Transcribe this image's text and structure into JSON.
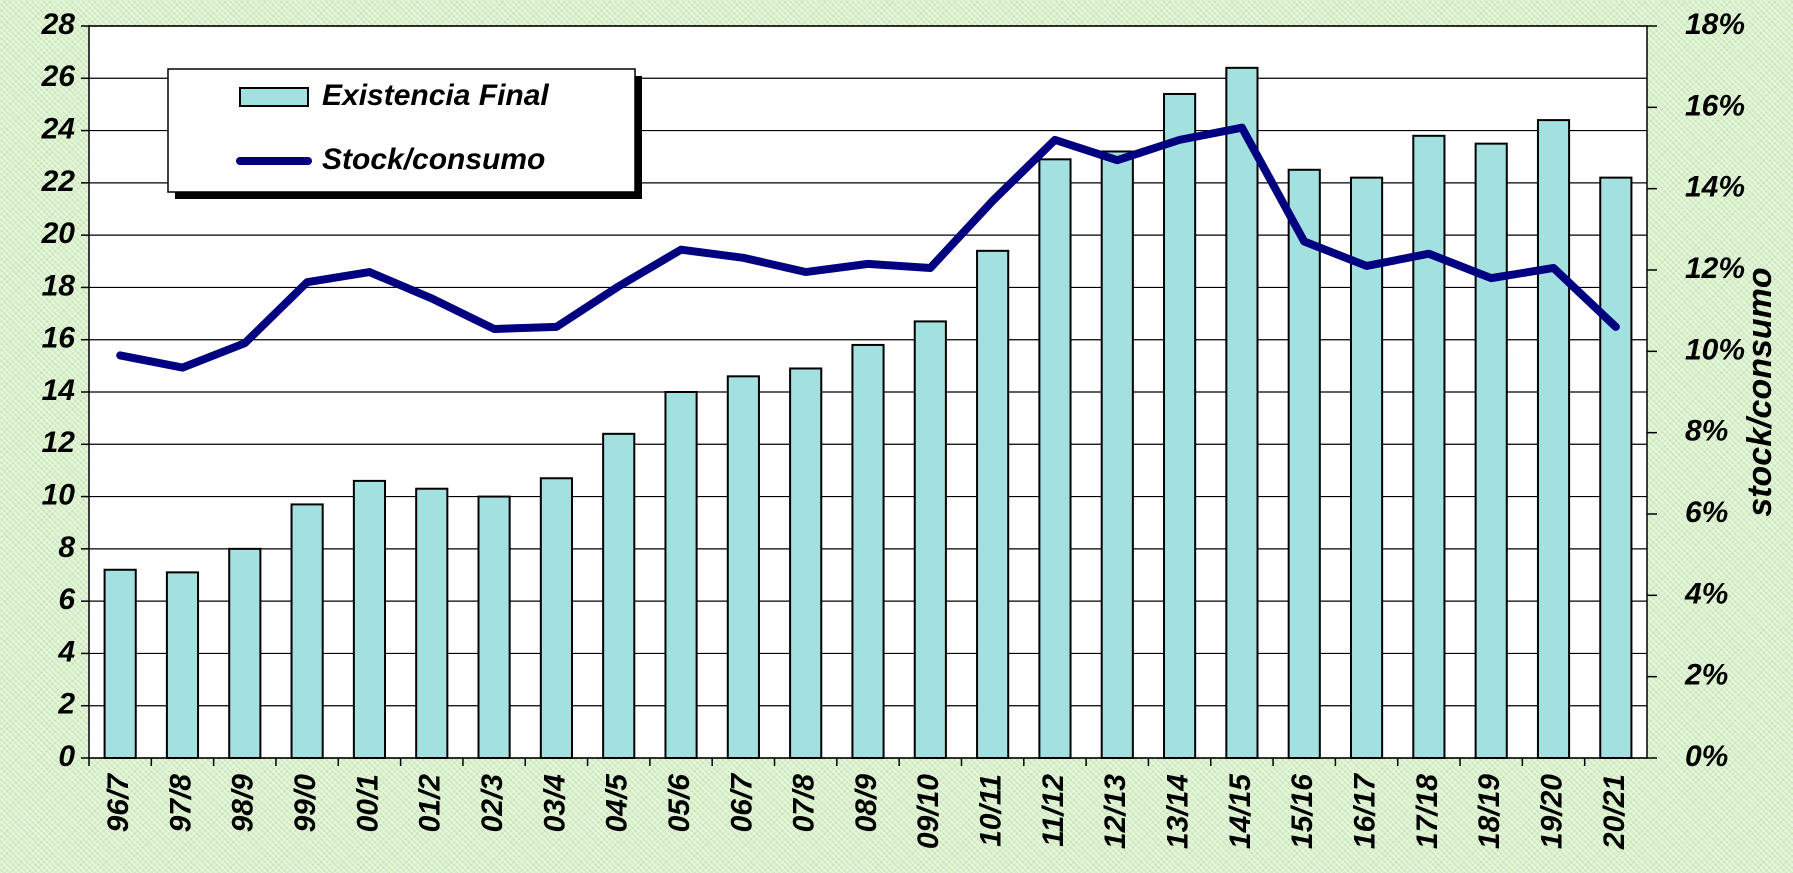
{
  "chart_data": {
    "type": "bar_line",
    "y2_label": "stock/consumo",
    "categories": [
      "96/7",
      "97/8",
      "98/9",
      "99/0",
      "00/1",
      "01/2",
      "02/3",
      "03/4",
      "04/5",
      "05/6",
      "06/7",
      "07/8",
      "08/9",
      "09/10",
      "10/11",
      "11/12",
      "12/13",
      "13/14",
      "14/15",
      "15/16",
      "16/17",
      "17/18",
      "18/19",
      "19/20",
      "20/21"
    ],
    "series": [
      {
        "name": "Existencia Final",
        "type": "bar",
        "color": "#a3e1e1",
        "values": [
          7.2,
          7.1,
          8.0,
          9.7,
          10.6,
          10.3,
          10.0,
          10.7,
          12.4,
          14.0,
          14.6,
          14.9,
          15.8,
          16.7,
          19.4,
          22.9,
          23.2,
          25.4,
          26.4,
          22.5,
          22.2,
          23.8,
          23.5,
          24.4,
          22.2
        ]
      },
      {
        "name": "Stock/consumo",
        "type": "line",
        "axis": "y2",
        "color": "#000080",
        "values": [
          9.9,
          9.6,
          10.2,
          11.7,
          11.95,
          11.3,
          10.55,
          10.6,
          11.6,
          12.5,
          12.3,
          11.95,
          12.15,
          12.05,
          13.7,
          15.2,
          14.7,
          15.2,
          15.5,
          12.7,
          12.1,
          12.4,
          11.8,
          12.05,
          10.6
        ]
      }
    ],
    "ylim": [
      0,
      28
    ],
    "yticks": [
      0,
      2,
      4,
      6,
      8,
      10,
      12,
      14,
      16,
      18,
      20,
      22,
      24,
      26,
      28
    ],
    "y2lim": [
      0,
      18
    ],
    "y2ticks": [
      {
        "value": 0,
        "label": "0%"
      },
      {
        "value": 2,
        "label": "2%"
      },
      {
        "value": 4,
        "label": "4%"
      },
      {
        "value": 6,
        "label": "6%"
      },
      {
        "value": 8,
        "label": "8%"
      },
      {
        "value": 10,
        "label": "10%"
      },
      {
        "value": 12,
        "label": "12%"
      },
      {
        "value": 14,
        "label": "14%"
      },
      {
        "value": 16,
        "label": "16%"
      },
      {
        "value": 18,
        "label": "18%"
      }
    ],
    "grid": true,
    "legend": "upper left"
  }
}
